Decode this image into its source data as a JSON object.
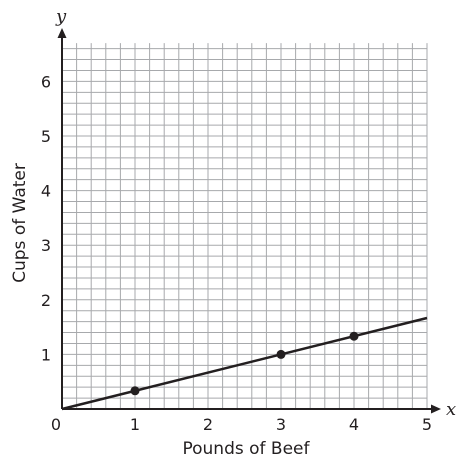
{
  "chart_data": {
    "type": "line",
    "title": "",
    "xlabel": "Pounds of Beef",
    "ylabel": "Cups of Water",
    "x_axis_letter": "x",
    "y_axis_letter": "y",
    "xlim": [
      0,
      5
    ],
    "ylim": [
      0,
      6.7
    ],
    "x_ticks": [
      "0",
      "1",
      "2",
      "3",
      "4",
      "5"
    ],
    "y_ticks": [
      "1",
      "2",
      "3",
      "4",
      "5",
      "6"
    ],
    "grid": true,
    "grid_minor_step": 0.2,
    "series": [
      {
        "line": {
          "x": [
            0,
            5
          ],
          "y": [
            0,
            1.6667
          ]
        },
        "points": [
          {
            "x": 1,
            "y": 0.3333
          },
          {
            "x": 3,
            "y": 1
          },
          {
            "x": 4,
            "y": 1.3333
          }
        ]
      }
    ],
    "colors": {
      "grid": "#a7a9ac",
      "axis": "#231f20",
      "line": "#231f20"
    }
  }
}
